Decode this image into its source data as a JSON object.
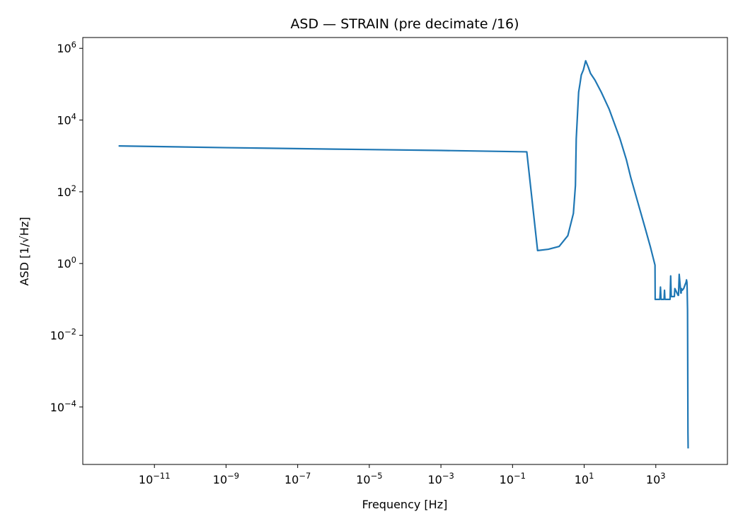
{
  "chart_data": {
    "type": "line",
    "title": "ASD — STRAIN (pre decimate /16)",
    "xlabel": "Frequency [Hz]",
    "ylabel": "ASD [1/√Hz]",
    "x_scale": "log",
    "y_scale": "log",
    "xlim": [
      1e-13,
      100000.0
    ],
    "ylim": [
      2.5e-06,
      2000000.0
    ],
    "grid": false,
    "line_color": "#1f77b4",
    "x_ticks": [
      {
        "base": "10",
        "exp": "−11",
        "value": 1e-11
      },
      {
        "base": "10",
        "exp": "−9",
        "value": 1e-09
      },
      {
        "base": "10",
        "exp": "−7",
        "value": 1e-07
      },
      {
        "base": "10",
        "exp": "−5",
        "value": 1e-05
      },
      {
        "base": "10",
        "exp": "−3",
        "value": 0.001
      },
      {
        "base": "10",
        "exp": "−1",
        "value": 0.1
      },
      {
        "base": "10",
        "exp": "1",
        "value": 10.0
      },
      {
        "base": "10",
        "exp": "3",
        "value": 1000.0
      }
    ],
    "y_ticks": [
      {
        "base": "10",
        "exp": "−4",
        "value": 0.0001
      },
      {
        "base": "10",
        "exp": "−2",
        "value": 0.01
      },
      {
        "base": "10",
        "exp": "0",
        "value": 1
      },
      {
        "base": "10",
        "exp": "2",
        "value": 100.0
      },
      {
        "base": "10",
        "exp": "4",
        "value": 10000.0
      },
      {
        "base": "10",
        "exp": "6",
        "value": 1000000.0
      }
    ],
    "series": [
      {
        "x": [
          1e-12,
          1e-09,
          1e-06,
          0.001,
          0.25,
          0.5,
          1.0,
          2.0,
          3.5,
          5.0,
          5.7,
          6.0,
          7.0,
          7.6,
          8.3,
          9.5,
          11.0,
          13.0,
          15.0,
          20.0,
          30.0,
          50.0,
          100.0,
          150.0,
          200.0,
          300.0,
          500.0,
          700.0,
          950.0,
          960.0,
          1000.0,
          1300.0,
          1350.0,
          1400.0,
          1500.0,
          1700.0,
          1750.0,
          1800.0,
          2000.0,
          2500.0,
          2600.0,
          2700.0,
          3200.0,
          3300.0,
          3400.0,
          4200.0,
          4300.0,
          4500.0,
          5000.0,
          5100.0,
          5200.0,
          5500.0,
          6000.0,
          6500.0,
          7000.0,
          7200.0,
          7400.0,
          7500.0,
          7700.0,
          7800.0,
          7900.0,
          8000.0
        ],
        "y": [
          1900,
          1700,
          1550,
          1420,
          1300,
          2.3,
          2.5,
          3.0,
          6.0,
          25,
          150,
          3000,
          60000,
          100000,
          180000,
          250000,
          450000,
          300000,
          200000,
          130000,
          60000,
          20000,
          3000,
          800,
          250,
          60,
          10,
          3,
          0.9,
          0.1,
          0.1,
          0.1,
          0.22,
          0.1,
          0.1,
          0.1,
          0.18,
          0.1,
          0.1,
          0.1,
          0.45,
          0.12,
          0.12,
          0.12,
          0.2,
          0.13,
          0.13,
          0.5,
          0.15,
          0.15,
          0.2,
          0.18,
          0.2,
          0.25,
          0.3,
          0.35,
          0.3,
          0.2,
          0.05,
          0.001,
          2e-05,
          7e-06
        ]
      }
    ]
  }
}
